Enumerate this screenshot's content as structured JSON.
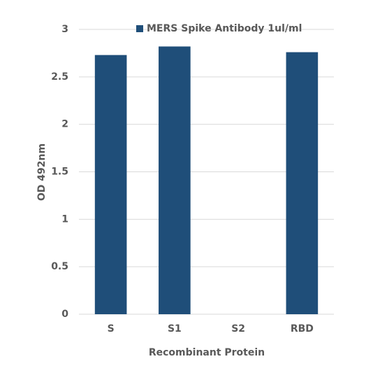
{
  "chart_data": {
    "type": "bar",
    "x_label": "Recombinant Protein",
    "y_label": "OD 492nm",
    "categories": [
      "S",
      "S1",
      "S2",
      "RBD"
    ],
    "series": [
      {
        "name": "MERS Spike Antibody 1ul/ml",
        "color": "#1f4e79",
        "values": [
          2.73,
          2.82,
          0,
          2.76
        ]
      }
    ],
    "ylim": [
      0,
      3
    ],
    "yticks": [
      0,
      0.5,
      1,
      1.5,
      2,
      2.5,
      3
    ],
    "grid": true,
    "legend": "top"
  }
}
